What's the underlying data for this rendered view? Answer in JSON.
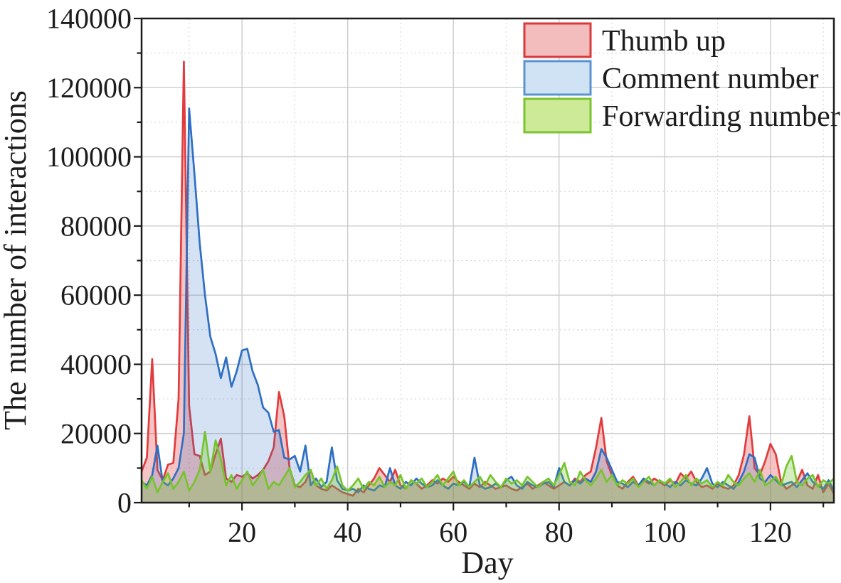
{
  "chart_data": {
    "type": "area",
    "title": "",
    "xlabel": "Day",
    "ylabel": "The number of interactions",
    "xlim": [
      1,
      132
    ],
    "ylim": [
      0,
      140000
    ],
    "x_major_ticks": [
      20,
      40,
      60,
      80,
      100,
      120
    ],
    "x_minor_ticks": [
      10,
      30,
      50,
      70,
      90,
      110,
      130
    ],
    "y_major_ticks": [
      0,
      20000,
      40000,
      60000,
      80000,
      100000,
      120000,
      140000
    ],
    "y_minor_ticks": [
      10000,
      30000,
      50000,
      70000,
      90000,
      110000,
      130000
    ],
    "grid": {
      "major": "solid",
      "minor": "dotted",
      "major_color": "#c9c9c9",
      "minor_color": "#d9d9d9"
    },
    "legend": {
      "position": "top-right",
      "frame": false
    },
    "frame_color": "#1c1c1c",
    "x": [
      1,
      2,
      3,
      4,
      5,
      6,
      7,
      8,
      9,
      10,
      11,
      12,
      13,
      14,
      15,
      16,
      17,
      18,
      19,
      20,
      21,
      22,
      23,
      24,
      25,
      26,
      27,
      28,
      29,
      30,
      31,
      32,
      33,
      34,
      35,
      36,
      37,
      38,
      39,
      40,
      41,
      42,
      43,
      44,
      45,
      46,
      47,
      48,
      49,
      50,
      51,
      52,
      53,
      54,
      55,
      56,
      57,
      58,
      59,
      60,
      61,
      62,
      63,
      64,
      65,
      66,
      67,
      68,
      69,
      70,
      71,
      72,
      73,
      74,
      75,
      76,
      77,
      78,
      79,
      80,
      81,
      82,
      83,
      84,
      85,
      86,
      87,
      88,
      89,
      90,
      91,
      92,
      93,
      94,
      95,
      96,
      97,
      98,
      99,
      100,
      101,
      102,
      103,
      104,
      105,
      106,
      107,
      108,
      109,
      110,
      111,
      112,
      113,
      114,
      115,
      116,
      117,
      118,
      119,
      120,
      121,
      122,
      123,
      124,
      125,
      126,
      127,
      128,
      129,
      130,
      131,
      132
    ],
    "series": [
      {
        "name": "Thumb up",
        "line_color": "#e03b3d",
        "fill_color": "rgba(224,59,61,0.30)",
        "legend_fill": "#f3bcbd",
        "legend_stroke": "#d93a3c",
        "values": [
          9000,
          13000,
          41500,
          9500,
          6500,
          11000,
          11500,
          30000,
          127500,
          28000,
          14000,
          13500,
          8000,
          9000,
          14000,
          18500,
          7000,
          6000,
          8000,
          7500,
          8500,
          7000,
          8000,
          9500,
          12000,
          16000,
          32000,
          25000,
          10000,
          5000,
          4500,
          6000,
          9500,
          5000,
          4000,
          3500,
          5000,
          4000,
          3000,
          2500,
          2000,
          4000,
          3000,
          5000,
          7000,
          10000,
          8000,
          6000,
          9500,
          5000,
          4000,
          6500,
          5500,
          4000,
          5000,
          6500,
          5500,
          7000,
          6000,
          7500,
          6000,
          5000,
          4000,
          5500,
          4500,
          6000,
          5000,
          4000,
          4500,
          5000,
          4000,
          3500,
          4500,
          5500,
          4000,
          5000,
          6000,
          5000,
          4000,
          5000,
          6000,
          5000,
          7000,
          6000,
          8000,
          9000,
          16000,
          24500,
          12000,
          8000,
          5000,
          4000,
          6000,
          7500,
          5000,
          6500,
          5500,
          7000,
          6000,
          5000,
          6500,
          5500,
          8500,
          7000,
          9000,
          6000,
          4500,
          5000,
          4000,
          5500,
          4500,
          4000,
          5000,
          8000,
          14000,
          25000,
          10000,
          8000,
          12000,
          17000,
          14000,
          6000,
          4000,
          5000,
          6000,
          9500,
          5000,
          4000,
          8000,
          3000,
          5500,
          2500
        ]
      },
      {
        "name": "Comment number",
        "line_color": "#2e6fc3",
        "fill_color": "rgba(46,111,195,0.20)",
        "legend_fill": "#d0e3f4",
        "legend_stroke": "#5e93d2",
        "values": [
          6000,
          5000,
          8000,
          16500,
          6000,
          5000,
          7000,
          10000,
          20000,
          114000,
          95000,
          75000,
          60000,
          48000,
          43000,
          36000,
          42000,
          33500,
          38000,
          44000,
          44500,
          38000,
          34000,
          27500,
          26000,
          20500,
          21000,
          13000,
          12500,
          13500,
          9000,
          16500,
          5000,
          7000,
          4500,
          6000,
          16000,
          6500,
          4000,
          3500,
          4000,
          3000,
          5000,
          4000,
          3500,
          5000,
          4500,
          10000,
          5000,
          4000,
          6000,
          5000,
          7000,
          5500,
          4500,
          5000,
          6500,
          5000,
          4000,
          5500,
          5000,
          6000,
          4500,
          13000,
          5000,
          4000,
          4500,
          5500,
          4500,
          6500,
          7500,
          5000,
          4000,
          6000,
          5000,
          4500,
          5500,
          6000,
          4500,
          10000,
          6000,
          5000,
          6500,
          5500,
          7000,
          6000,
          9000,
          15500,
          13000,
          9500,
          6000,
          5500,
          4500,
          6000,
          5000,
          7000,
          6000,
          5000,
          6500,
          5500,
          4500,
          6000,
          5000,
          6500,
          5500,
          5000,
          7000,
          10000,
          5500,
          4500,
          6000,
          5000,
          4000,
          6000,
          9000,
          14000,
          13000,
          7000,
          6000,
          8000,
          6500,
          5000,
          5500,
          6000,
          4500,
          6500,
          8500,
          6000,
          5000,
          4000,
          6500,
          3500
        ]
      },
      {
        "name": "Forwarding number",
        "line_color": "#76c42d",
        "fill_color": "rgba(118,196,45,0.30)",
        "legend_fill": "#cdea98",
        "legend_stroke": "#79c42f",
        "values": [
          6500,
          4000,
          7500,
          3000,
          6000,
          8500,
          4000,
          6000,
          9000,
          3500,
          6000,
          9500,
          20500,
          9000,
          18000,
          12500,
          5000,
          8000,
          4000,
          6500,
          9000,
          5000,
          7000,
          9500,
          4000,
          6000,
          5000,
          7500,
          10000,
          4500,
          6000,
          8000,
          9500,
          5000,
          7000,
          4000,
          6500,
          10500,
          5000,
          3500,
          5000,
          7000,
          4000,
          6000,
          5000,
          7500,
          4500,
          6000,
          5000,
          8000,
          4000,
          6500,
          5500,
          7000,
          4500,
          6000,
          8000,
          5000,
          7000,
          9000,
          5000,
          6500,
          4500,
          6000,
          7500,
          5000,
          8000,
          6000,
          4500,
          7000,
          5500,
          6500,
          5000,
          7500,
          6000,
          4500,
          6000,
          7000,
          5000,
          8000,
          11500,
          6000,
          5000,
          9000,
          6500,
          5000,
          7000,
          9500,
          6000,
          8000,
          5000,
          6500,
          5500,
          7000,
          4500,
          6000,
          7500,
          5000,
          6500,
          5500,
          7000,
          4500,
          6000,
          8000,
          5000,
          7000,
          5500,
          6500,
          4500,
          6000,
          5000,
          8000,
          6000,
          5000,
          7000,
          8500,
          6000,
          9500,
          5000,
          6000,
          7500,
          5000,
          10500,
          13500,
          6000,
          5000,
          7000,
          8000,
          4500,
          6500,
          5500,
          7000
        ]
      }
    ]
  }
}
